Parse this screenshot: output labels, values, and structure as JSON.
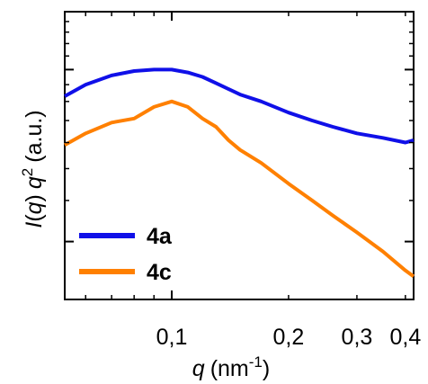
{
  "chart_data": {
    "type": "line",
    "title": "",
    "x_scale": "log",
    "y_scale": "log",
    "xlabel": {
      "italic": "q",
      "unit": "(nm",
      "sup": "-1",
      "close": ")"
    },
    "ylabel": {
      "italic1": "I",
      "paren_open": "(",
      "italic2": "q",
      "paren_close": ")",
      "italic3": "q",
      "sup": "2",
      "unit": "(a.u.)"
    },
    "xlim": [
      0.053,
      0.42
    ],
    "ylim": [
      0.2,
      1.5
    ],
    "x_ticks": [
      {
        "value": 0.1,
        "label": "0,1"
      },
      {
        "value": 0.2,
        "label": "0,2"
      },
      {
        "value": 0.3,
        "label": "0,3"
      },
      {
        "value": 0.4,
        "label": "0,4"
      }
    ],
    "legend_position": "bottom-left",
    "grid": false,
    "series": [
      {
        "name": "4a",
        "color": "#1010e8",
        "x": [
          0.053,
          0.06,
          0.07,
          0.08,
          0.09,
          0.1,
          0.11,
          0.12,
          0.13,
          0.15,
          0.17,
          0.2,
          0.23,
          0.26,
          0.3,
          0.35,
          0.4,
          0.42
        ],
        "y": [
          0.83,
          0.9,
          0.96,
          0.99,
          1.0,
          1.0,
          0.98,
          0.95,
          0.91,
          0.84,
          0.8,
          0.74,
          0.7,
          0.67,
          0.64,
          0.62,
          0.6,
          0.61
        ]
      },
      {
        "name": "4c",
        "color": "#ff8000",
        "x": [
          0.053,
          0.06,
          0.07,
          0.08,
          0.09,
          0.1,
          0.11,
          0.12,
          0.13,
          0.14,
          0.15,
          0.17,
          0.2,
          0.23,
          0.26,
          0.3,
          0.35,
          0.4,
          0.42
        ],
        "y": [
          0.59,
          0.64,
          0.69,
          0.71,
          0.77,
          0.8,
          0.77,
          0.71,
          0.67,
          0.61,
          0.57,
          0.52,
          0.45,
          0.4,
          0.36,
          0.32,
          0.28,
          0.245,
          0.235
        ]
      }
    ]
  }
}
